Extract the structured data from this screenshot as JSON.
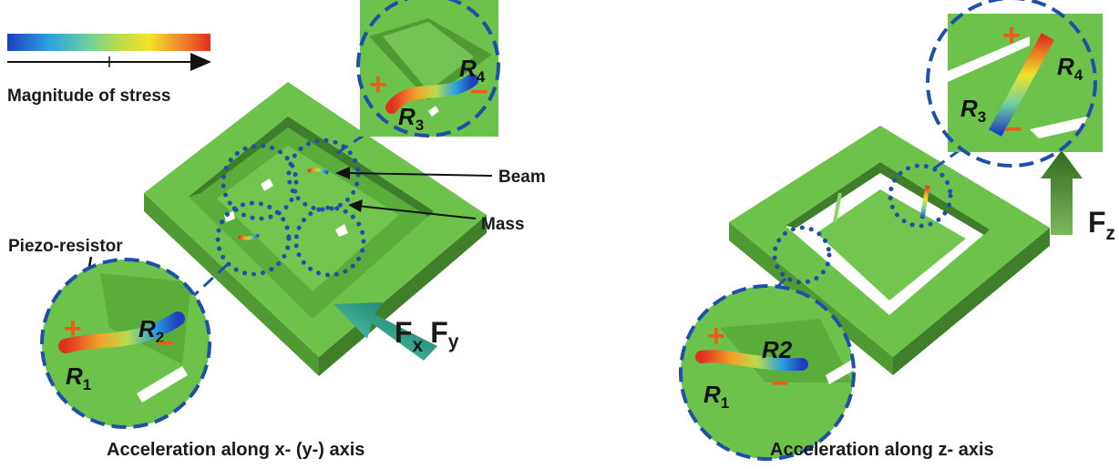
{
  "legend": {
    "title": "Magnitude of stress",
    "colors": [
      "#1f3fbf",
      "#2aa0e0",
      "#6ed0a0",
      "#b9dd4a",
      "#f2e22a",
      "#f08a2a",
      "#e0301e"
    ]
  },
  "colors": {
    "device_top": "#6cc24a",
    "device_side": "#4f9a33",
    "device_dark": "#3f7f2a",
    "circle_dash": "#1f4fa8",
    "sign": "#ee5a1e",
    "arrow_fx": "#2aa08a",
    "arrow_fz": "#3d7f2a"
  },
  "left_panel": {
    "caption": "Acceleration along x- (y-) axis",
    "label_beam": "Beam",
    "label_mass": "Mass",
    "label_piezo": "Piezo-resistor",
    "force": {
      "f1": "F",
      "s1": "x",
      "f2": "F",
      "s2": "y"
    },
    "top_inset": {
      "r_top": "R",
      "r_top_sub": "4",
      "r_bottom": "R",
      "r_bottom_sub": "3",
      "plus": "+",
      "minus": "−"
    },
    "bottom_inset": {
      "r_top": "R",
      "r_top_sub": "2",
      "r_bottom": "R",
      "r_bottom_sub": "1",
      "plus": "+",
      "minus": "−"
    }
  },
  "right_panel": {
    "caption": "Acceleration along z- axis",
    "force": {
      "f": "F",
      "s": "z"
    },
    "top_inset": {
      "r_top": "R",
      "r_top_sub": "4",
      "r_bottom": "R",
      "r_bottom_sub": "3",
      "plus": "+",
      "minus": "−"
    },
    "bottom_inset": {
      "r_top": "R2",
      "r_bottom": "R",
      "r_bottom_sub": "1",
      "plus": "+",
      "minus": "−"
    }
  }
}
